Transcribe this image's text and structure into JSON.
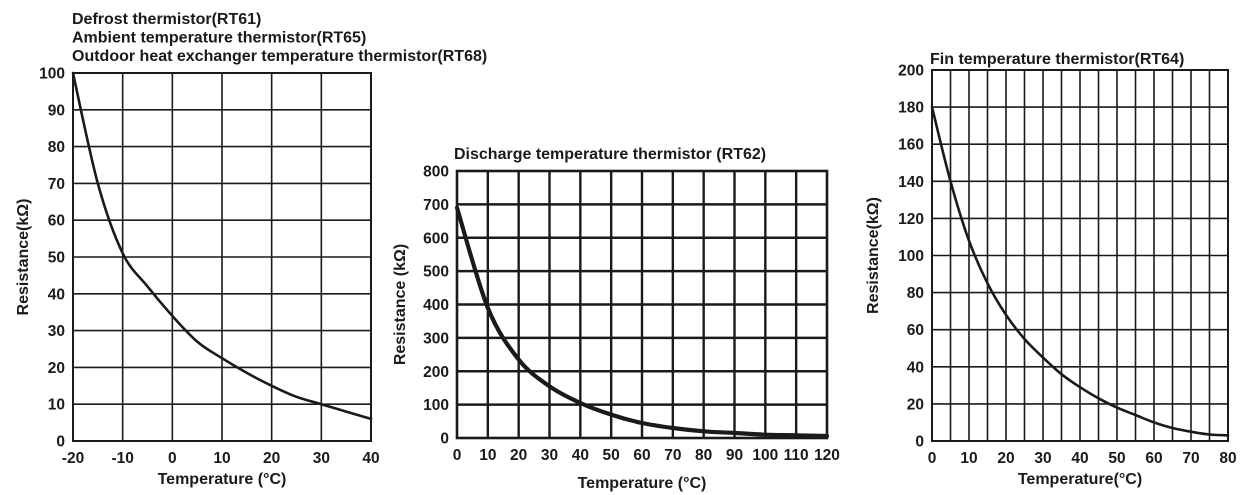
{
  "chart_data": [
    {
      "type": "line",
      "title_lines": [
        "Defrost thermistor(RT61)",
        "Ambient temperature thermistor(RT65)",
        "Outdoor heat exchanger temperature thermistor(RT68)"
      ],
      "xlabel": "Temperature (°C)",
      "ylabel": "Resistance(kΩ)",
      "xlim": [
        -20,
        40
      ],
      "ylim": [
        0,
        100
      ],
      "xticks": [
        -20,
        -10,
        0,
        10,
        20,
        30,
        40
      ],
      "yticks": [
        0,
        10,
        20,
        30,
        40,
        50,
        60,
        70,
        80,
        90,
        100
      ],
      "xgrid_step": 10,
      "ygrid_step": 10,
      "grid": true,
      "series": [
        {
          "name": "RT61/RT65/RT68",
          "x": [
            -20,
            -15,
            -10,
            -5,
            0,
            5,
            10,
            15,
            20,
            25,
            30,
            35,
            40
          ],
          "y": [
            100,
            70,
            51,
            42,
            34,
            27,
            22.5,
            18.5,
            15,
            12,
            10,
            8,
            6
          ]
        }
      ]
    },
    {
      "type": "line",
      "title_lines": [
        "Discharge temperature thermistor (RT62)"
      ],
      "xlabel": "Temperature (°C)",
      "ylabel": "Resistance (kΩ)",
      "xlim": [
        0,
        120
      ],
      "ylim": [
        0,
        800
      ],
      "xticks": [
        0,
        10,
        20,
        30,
        40,
        50,
        60,
        70,
        80,
        90,
        100,
        110,
        120
      ],
      "yticks": [
        0,
        100,
        200,
        300,
        400,
        500,
        600,
        700,
        800
      ],
      "xgrid_step": 10,
      "ygrid_step": 100,
      "grid": true,
      "series": [
        {
          "name": "RT62",
          "x": [
            0,
            10,
            20,
            30,
            40,
            50,
            60,
            70,
            80,
            90,
            100,
            110,
            120
          ],
          "y": [
            690,
            390,
            235,
            155,
            105,
            70,
            45,
            30,
            20,
            15,
            10,
            8,
            6
          ]
        }
      ]
    },
    {
      "type": "line",
      "title_lines": [
        "Fin temperature thermistor(RT64)"
      ],
      "xlabel": "Temperature(°C)",
      "ylabel": "Resistance(kΩ)",
      "xlim": [
        0,
        80
      ],
      "ylim": [
        0,
        200
      ],
      "xticks": [
        0,
        10,
        20,
        30,
        40,
        50,
        60,
        70,
        80
      ],
      "yticks": [
        0,
        20,
        40,
        60,
        80,
        100,
        120,
        140,
        160,
        180,
        200
      ],
      "xgrid_step": 5,
      "ygrid_step": 20,
      "grid": true,
      "series": [
        {
          "name": "RT64",
          "x": [
            0,
            5,
            10,
            15,
            20,
            25,
            30,
            35,
            40,
            45,
            50,
            55,
            60,
            65,
            70,
            75,
            80
          ],
          "y": [
            180,
            140,
            108,
            85,
            68,
            55,
            45,
            36,
            29,
            23,
            18,
            14,
            10,
            7,
            5,
            3.5,
            3
          ]
        }
      ]
    }
  ]
}
